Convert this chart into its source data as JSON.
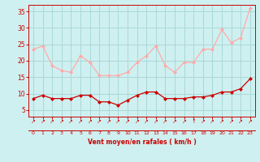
{
  "hours": [
    0,
    1,
    2,
    3,
    4,
    5,
    6,
    7,
    8,
    9,
    10,
    11,
    12,
    13,
    14,
    15,
    16,
    17,
    18,
    19,
    20,
    21,
    22,
    23
  ],
  "wind_avg": [
    8.5,
    9.5,
    8.5,
    8.5,
    8.5,
    9.5,
    9.5,
    7.5,
    7.5,
    6.5,
    8.0,
    9.5,
    10.5,
    10.5,
    8.5,
    8.5,
    8.5,
    9.0,
    9.0,
    9.5,
    10.5,
    10.5,
    11.5,
    14.5
  ],
  "wind_gust": [
    23.5,
    24.5,
    18.5,
    17.0,
    16.5,
    21.5,
    19.5,
    15.5,
    15.5,
    15.5,
    16.5,
    19.5,
    21.5,
    24.5,
    18.5,
    16.5,
    19.5,
    19.5,
    23.5,
    23.5,
    29.5,
    25.5,
    27.0,
    36.0
  ],
  "color_avg": "#cc0000",
  "color_gust": "#ffaaaa",
  "bg_color": "#cff0f0",
  "grid_color": "#aad8d8",
  "xlabel": "Vent moyen/en rafales ( km/h )",
  "ylabel_ticks": [
    5,
    10,
    15,
    20,
    25,
    30,
    35
  ],
  "ylim": [
    3,
    37
  ],
  "xlim": [
    -0.5,
    23.5
  ]
}
